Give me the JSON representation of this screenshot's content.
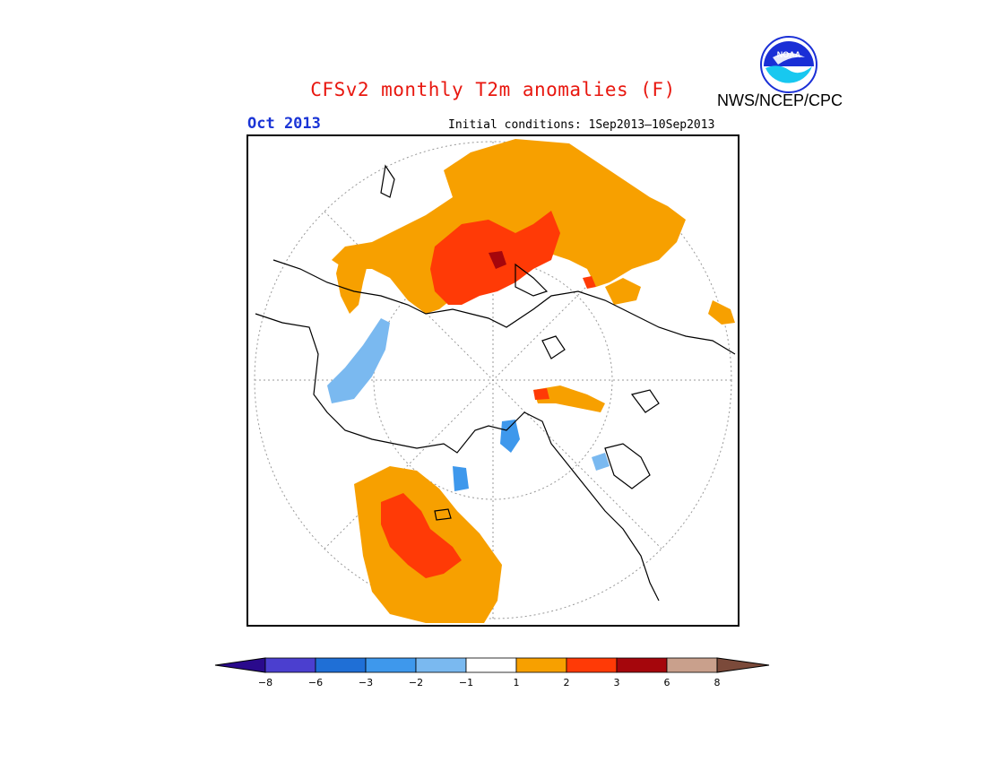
{
  "header": {
    "title": "CFSv2 monthly T2m anomalies (F)",
    "month": "Oct 2013",
    "initial_conditions": "Initial conditions: 1Sep2013–10Sep2013",
    "agency": "NWS/NCEP/CPC",
    "logo_text": "NOAA"
  },
  "map": {
    "projection": "north-polar-stereographic",
    "icon": "polar-map-icon"
  },
  "colorbar": {
    "ticks": [
      "−8",
      "−6",
      "−3",
      "−2",
      "−1",
      "1",
      "2",
      "3",
      "6",
      "8"
    ],
    "colors": [
      "#2a0a8c",
      "#4b3fcf",
      "#1f6fd6",
      "#3e98ec",
      "#7ab9f0",
      "#ffffff",
      "#f7a000",
      "#ff3a06",
      "#a5060c",
      "#c9a08c",
      "#7b4a3a"
    ]
  }
}
